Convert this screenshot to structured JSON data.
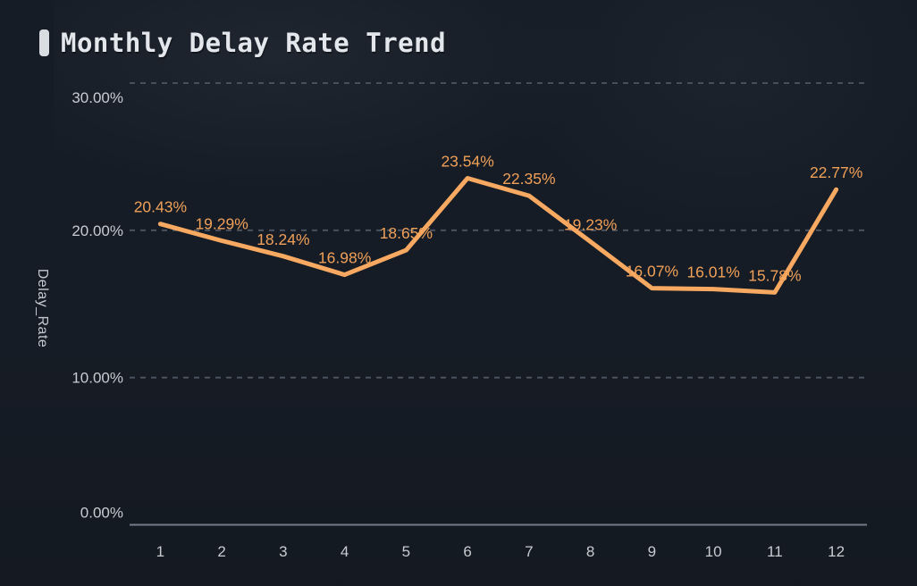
{
  "header": {
    "title": "Monthly Delay Rate Trend"
  },
  "chart_data": {
    "type": "line",
    "title": "Monthly Delay Rate Trend",
    "xlabel": "",
    "ylabel": "Delay_Rate",
    "categories": [
      "1",
      "2",
      "3",
      "4",
      "5",
      "6",
      "7",
      "8",
      "9",
      "10",
      "11",
      "12"
    ],
    "series": [
      {
        "name": "Delay_Rate",
        "values": [
          20.43,
          19.29,
          18.24,
          16.98,
          18.65,
          23.54,
          22.35,
          19.23,
          16.07,
          16.01,
          15.78,
          22.77
        ]
      }
    ],
    "point_labels": [
      "20.43%",
      "19.29%",
      "18.24%",
      "16.98%",
      "18.65%",
      "23.54%",
      "22.35%",
      "19.23%",
      "16.07%",
      "16.01%",
      "15.78%",
      "22.77%"
    ],
    "y_ticks": [
      {
        "value": 0,
        "label": "0.00%"
      },
      {
        "value": 10,
        "label": "10.00%"
      },
      {
        "value": 20,
        "label": "20.00%"
      },
      {
        "value": 30,
        "label": "30.00%"
      }
    ],
    "ylim": [
      0,
      30
    ],
    "grid": "horizontal-dashed",
    "legend": "none",
    "colors": {
      "line": "#f7a861",
      "data_label": "#f0a058",
      "axis_label": "#c7ccd3",
      "grid": "#4d5662",
      "axis_line": "#737c88",
      "title": "#e3e7ec",
      "background": "#161c25"
    }
  }
}
